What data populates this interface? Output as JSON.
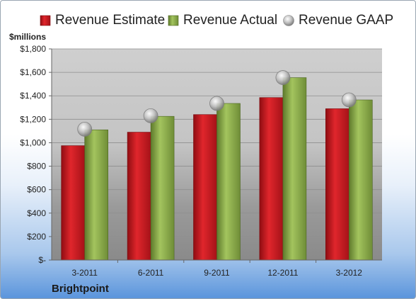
{
  "legend": {
    "estimate": "Revenue Estimate",
    "actual": "Revenue Actual",
    "gaap": "Revenue GAAP"
  },
  "unit_label": "$millions",
  "company": "Brightpoint",
  "colors": {
    "estimate": "#c8161d",
    "actual": "#8cae4c",
    "gaap": "#b8b8b8"
  },
  "chart_data": {
    "type": "bar",
    "categories": [
      "3-2011",
      "6-2011",
      "9-2011",
      "12-2011",
      "3-2012"
    ],
    "series": [
      {
        "name": "Revenue Estimate",
        "values": [
          975,
          1090,
          1240,
          1385,
          1290
        ]
      },
      {
        "name": "Revenue Actual",
        "values": [
          1110,
          1225,
          1335,
          1555,
          1365
        ]
      },
      {
        "name": "Revenue GAAP",
        "values": [
          1115,
          1230,
          1335,
          1555,
          1365
        ]
      }
    ],
    "ylabel": "$millions",
    "ylim": [
      0,
      1800
    ],
    "yticks": [
      0,
      200,
      400,
      600,
      800,
      1000,
      1200,
      1400,
      1600,
      1800
    ],
    "ytick_labels": [
      "$-",
      "$200",
      "$400",
      "$600",
      "$800",
      "$1,000",
      "$1,200",
      "$1,400",
      "$1,600",
      "$1,800"
    ],
    "grid": true,
    "legend_position": "top"
  }
}
